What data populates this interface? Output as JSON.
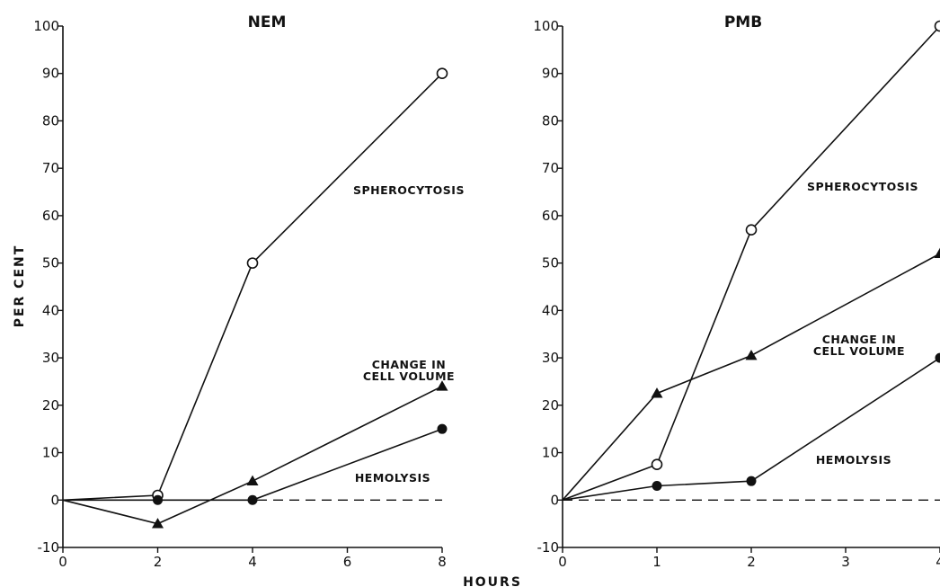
{
  "chart_data": [
    {
      "type": "line",
      "title": "NEM",
      "xlabel": "HOURS",
      "ylabel": "PER CENT",
      "xlim": [
        0,
        8
      ],
      "ylim": [
        -10,
        100
      ],
      "x_ticks": [
        "0",
        "2",
        "4",
        "6",
        "8"
      ],
      "y_ticks": [
        "-10",
        "0",
        "10",
        "20",
        "30",
        "40",
        "50",
        "60",
        "70",
        "80",
        "90",
        "100"
      ],
      "grid": false,
      "legend": "none (series labeled inline)",
      "series": [
        {
          "name": "SPHEROCYTOSIS",
          "marker": "open-circle",
          "x": [
            0,
            2,
            4,
            8
          ],
          "y": [
            0,
            1,
            50,
            90
          ]
        },
        {
          "name": "CHANGE IN CELL VOLUME",
          "marker": "filled-triangle",
          "x": [
            0,
            2,
            4,
            8
          ],
          "y": [
            0,
            -5,
            4,
            24
          ]
        },
        {
          "name": "HEMOLYSIS",
          "marker": "filled-circle",
          "x": [
            0,
            2,
            4,
            8
          ],
          "y": [
            0,
            0,
            0,
            15
          ]
        }
      ],
      "annotations": [
        {
          "lines": [
            "SPHEROCYTOSIS"
          ]
        },
        {
          "lines": [
            "CHANGE IN",
            "CELL VOLUME"
          ]
        },
        {
          "lines": [
            "HEMOLYSIS"
          ]
        }
      ],
      "baseline": {
        "y": 0,
        "style": "dashed"
      }
    },
    {
      "type": "line",
      "title": "PMB",
      "xlabel": "HOURS",
      "ylabel": "",
      "xlim": [
        0,
        4
      ],
      "ylim": [
        -10,
        100
      ],
      "x_ticks": [
        "0",
        "1",
        "2",
        "3",
        "4"
      ],
      "y_ticks": [
        "-10",
        "0",
        "10",
        "20",
        "30",
        "40",
        "50",
        "60",
        "70",
        "80",
        "90",
        "100"
      ],
      "grid": false,
      "legend": "none (series labeled inline)",
      "series": [
        {
          "name": "SPHEROCYTOSIS",
          "marker": "open-circle",
          "x": [
            0,
            1,
            2,
            4
          ],
          "y": [
            0,
            7.5,
            57,
            100
          ]
        },
        {
          "name": "CHANGE IN CELL VOLUME",
          "marker": "filled-triangle",
          "x": [
            0,
            1,
            2,
            4
          ],
          "y": [
            0,
            22.5,
            30.5,
            52
          ]
        },
        {
          "name": "HEMOLYSIS",
          "marker": "filled-circle",
          "x": [
            0,
            1,
            2,
            4
          ],
          "y": [
            0,
            3,
            4,
            30
          ]
        }
      ],
      "annotations": [
        {
          "lines": [
            "SPHEROCYTOSIS"
          ]
        },
        {
          "lines": [
            "CHANGE IN",
            "CELL VOLUME"
          ]
        },
        {
          "lines": [
            "HEMOLYSIS"
          ]
        }
      ],
      "baseline": {
        "y": 0,
        "style": "dashed"
      }
    }
  ],
  "shared_xlabel": "HOURS",
  "colors": {
    "ink": "#111111",
    "background": "#ffffff"
  }
}
